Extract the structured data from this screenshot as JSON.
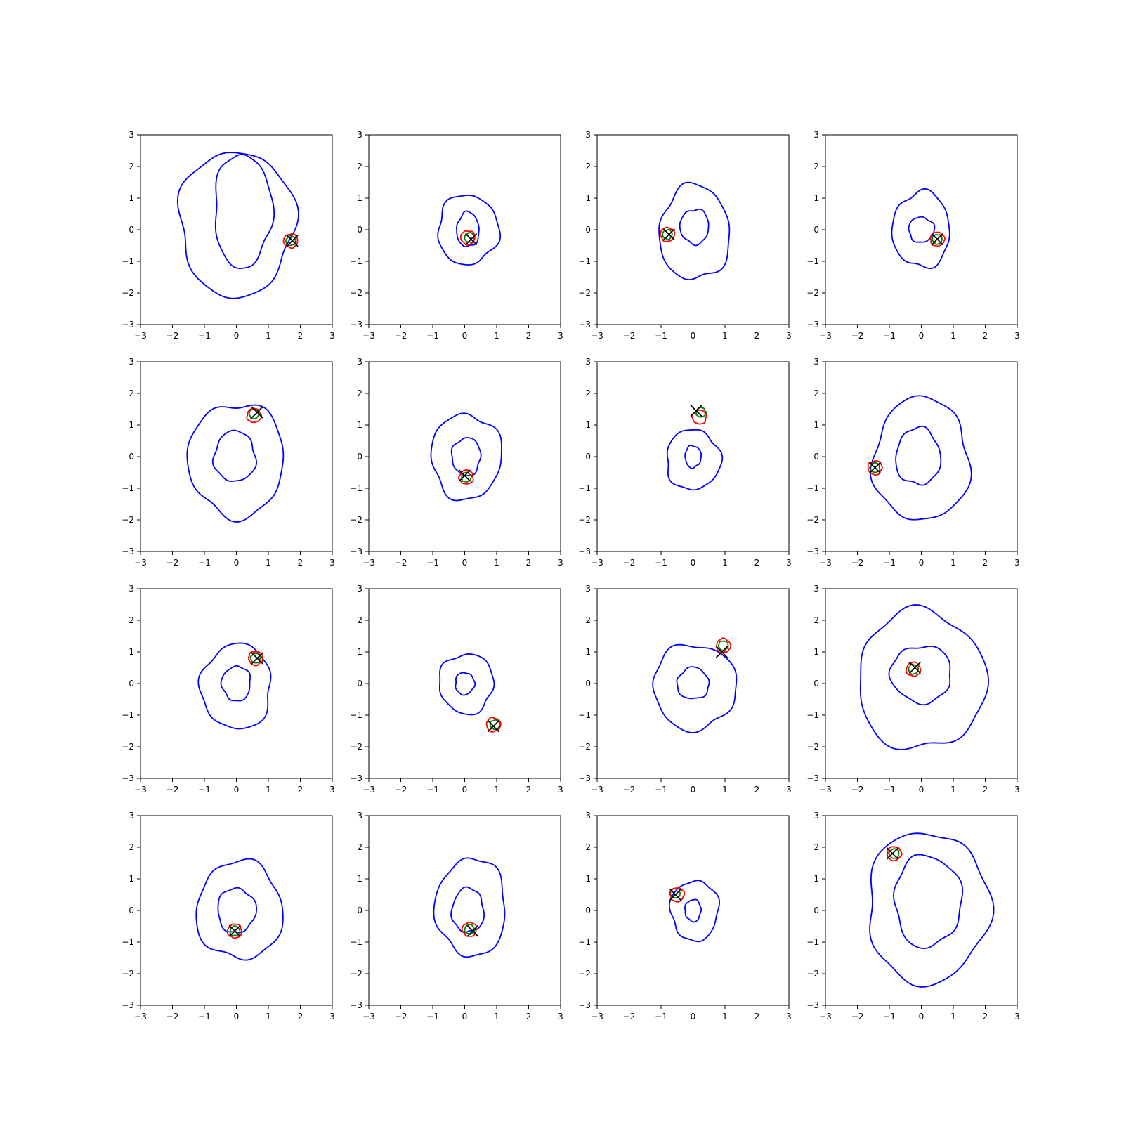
{
  "figure": {
    "rows": 4,
    "cols": 4,
    "tick_values": [
      -3,
      -2,
      -1,
      0,
      1,
      2,
      3
    ],
    "tick_labels": [
      "−3",
      "−2",
      "−1",
      "0",
      "1",
      "2",
      "3"
    ],
    "xlim": [
      -3,
      3
    ],
    "ylim": [
      -3,
      3
    ],
    "grid": false,
    "legend": "none"
  },
  "colors": {
    "contour": "#0000ff",
    "red_contour": "#ff0000",
    "green_contour": "#008000",
    "marker": "#000000",
    "frame": "#000000"
  },
  "chart_data": [
    {
      "type": "contour",
      "panel": "1-1",
      "outer": {
        "cx": 0.0,
        "cy": 0.2,
        "rx": 1.8,
        "ry": 2.3
      },
      "inner": {
        "cx": 0.2,
        "cy": 0.6,
        "rx": 0.9,
        "ry": 1.8
      },
      "green": [
        1.7,
        -0.35
      ],
      "red": [
        1.7,
        -0.35
      ],
      "marker": [
        1.75,
        -0.35
      ]
    },
    {
      "type": "contour",
      "panel": "1-2",
      "outer": {
        "cx": 0.1,
        "cy": 0.0,
        "rx": 0.95,
        "ry": 1.1
      },
      "inner": {
        "cx": 0.1,
        "cy": 0.0,
        "rx": 0.35,
        "ry": 0.55
      },
      "green": [
        0.15,
        -0.25
      ],
      "red": [
        0.1,
        -0.25
      ],
      "marker": [
        0.2,
        -0.3
      ]
    },
    {
      "type": "contour",
      "panel": "1-3",
      "outer": {
        "cx": 0.05,
        "cy": -0.1,
        "rx": 1.1,
        "ry": 1.5
      },
      "inner": {
        "cx": 0.05,
        "cy": 0.1,
        "rx": 0.45,
        "ry": 0.55
      },
      "green": [
        -0.8,
        -0.15
      ],
      "red": [
        -0.8,
        -0.15
      ],
      "marker": [
        -0.75,
        -0.15
      ]
    },
    {
      "type": "contour",
      "panel": "1-4",
      "outer": {
        "cx": 0.0,
        "cy": 0.0,
        "rx": 0.9,
        "ry": 1.2
      },
      "inner": {
        "cx": 0.0,
        "cy": 0.0,
        "rx": 0.4,
        "ry": 0.4
      },
      "green": [
        0.5,
        -0.3
      ],
      "red": [
        0.5,
        -0.3
      ],
      "marker": [
        0.5,
        -0.3
      ]
    },
    {
      "type": "contour",
      "panel": "2-1",
      "outer": {
        "cx": 0.0,
        "cy": -0.1,
        "rx": 1.5,
        "ry": 1.8
      },
      "inner": {
        "cx": -0.05,
        "cy": 0.0,
        "rx": 0.65,
        "ry": 0.8
      },
      "green": [
        0.55,
        1.35
      ],
      "red": [
        0.55,
        1.3
      ],
      "marker": [
        0.65,
        1.4
      ]
    },
    {
      "type": "contour",
      "panel": "2-2",
      "outer": {
        "cx": 0.05,
        "cy": 0.0,
        "rx": 1.1,
        "ry": 1.35
      },
      "inner": {
        "cx": 0.05,
        "cy": 0.0,
        "rx": 0.45,
        "ry": 0.6
      },
      "green": [
        0.05,
        -0.65
      ],
      "red": [
        0.05,
        -0.65
      ],
      "marker": [
        0.0,
        -0.6
      ]
    },
    {
      "type": "contour",
      "panel": "2-3",
      "outer": {
        "cx": 0.0,
        "cy": -0.1,
        "rx": 0.85,
        "ry": 0.95
      },
      "inner": {
        "cx": 0.0,
        "cy": 0.0,
        "rx": 0.25,
        "ry": 0.35
      },
      "green": [
        0.25,
        1.4
      ],
      "red": [
        0.2,
        1.25
      ],
      "marker": [
        0.1,
        1.45
      ]
    },
    {
      "type": "contour",
      "panel": "2-4",
      "outer": {
        "cx": 0.0,
        "cy": -0.1,
        "rx": 1.5,
        "ry": 1.95
      },
      "inner": {
        "cx": -0.1,
        "cy": 0.0,
        "rx": 0.7,
        "ry": 0.9
      },
      "green": [
        -1.45,
        -0.35
      ],
      "red": [
        -1.45,
        -0.35
      ],
      "marker": [
        -1.45,
        -0.35
      ]
    },
    {
      "type": "contour",
      "panel": "3-1",
      "outer": {
        "cx": 0.0,
        "cy": -0.1,
        "rx": 1.1,
        "ry": 1.35
      },
      "inner": {
        "cx": 0.0,
        "cy": 0.0,
        "rx": 0.45,
        "ry": 0.55
      },
      "green": [
        0.6,
        0.8
      ],
      "red": [
        0.6,
        0.8
      ],
      "marker": [
        0.65,
        0.8
      ]
    },
    {
      "type": "contour",
      "panel": "3-2",
      "outer": {
        "cx": 0.05,
        "cy": 0.0,
        "rx": 0.85,
        "ry": 0.95
      },
      "inner": {
        "cx": 0.0,
        "cy": 0.0,
        "rx": 0.3,
        "ry": 0.35
      },
      "green": [
        0.95,
        -1.3
      ],
      "red": [
        0.9,
        -1.3
      ],
      "marker": [
        0.9,
        -1.35
      ]
    },
    {
      "type": "contour",
      "panel": "3-3",
      "outer": {
        "cx": 0.05,
        "cy": -0.1,
        "rx": 1.3,
        "ry": 1.35
      },
      "inner": {
        "cx": 0.0,
        "cy": 0.0,
        "rx": 0.5,
        "ry": 0.5
      },
      "green": [
        0.95,
        1.2
      ],
      "red": [
        0.95,
        1.2
      ],
      "marker": [
        0.9,
        1.0
      ]
    },
    {
      "type": "contour",
      "panel": "3-4",
      "outer": {
        "cx": 0.0,
        "cy": 0.1,
        "rx": 2.0,
        "ry": 2.2
      },
      "inner": {
        "cx": 0.0,
        "cy": 0.3,
        "rx": 0.95,
        "ry": 0.9
      },
      "green": [
        -0.25,
        0.45
      ],
      "red": [
        -0.25,
        0.45
      ],
      "marker": [
        -0.2,
        0.5
      ]
    },
    {
      "type": "contour",
      "panel": "4-1",
      "outer": {
        "cx": 0.1,
        "cy": 0.0,
        "rx": 1.35,
        "ry": 1.55
      },
      "inner": {
        "cx": 0.0,
        "cy": 0.0,
        "rx": 0.6,
        "ry": 0.7
      },
      "green": [
        -0.05,
        -0.65
      ],
      "red": [
        -0.05,
        -0.65
      ],
      "marker": [
        -0.05,
        -0.65
      ]
    },
    {
      "type": "contour",
      "panel": "4-2",
      "outer": {
        "cx": 0.2,
        "cy": 0.1,
        "rx": 1.1,
        "ry": 1.55
      },
      "inner": {
        "cx": 0.1,
        "cy": 0.0,
        "rx": 0.5,
        "ry": 0.7
      },
      "green": [
        0.15,
        -0.6
      ],
      "red": [
        0.15,
        -0.6
      ],
      "marker": [
        0.25,
        -0.65
      ]
    },
    {
      "type": "contour",
      "panel": "4-3",
      "outer": {
        "cx": 0.05,
        "cy": 0.0,
        "rx": 0.75,
        "ry": 0.95
      },
      "inner": {
        "cx": 0.0,
        "cy": 0.0,
        "rx": 0.25,
        "ry": 0.35
      },
      "green": [
        -0.55,
        0.55
      ],
      "red": [
        -0.5,
        0.5
      ],
      "marker": [
        -0.55,
        0.5
      ]
    },
    {
      "type": "contour",
      "panel": "4-4",
      "outer": {
        "cx": 0.2,
        "cy": 0.1,
        "rx": 1.9,
        "ry": 2.4
      },
      "inner": {
        "cx": 0.2,
        "cy": 0.3,
        "rx": 1.05,
        "ry": 1.45
      },
      "green": [
        -0.85,
        1.8
      ],
      "red": [
        -0.85,
        1.8
      ],
      "marker": [
        -0.9,
        1.8
      ]
    }
  ]
}
